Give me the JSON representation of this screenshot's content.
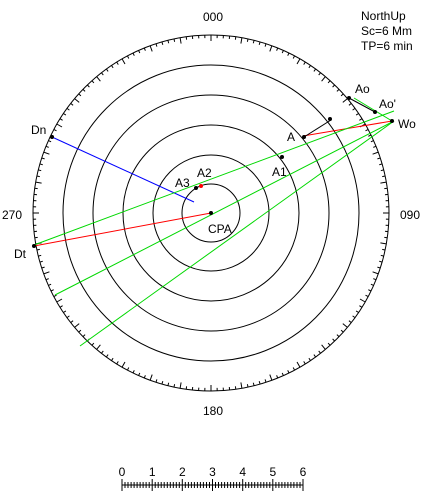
{
  "info": {
    "mode": "NorthUp",
    "scale": "Sc=6 Mm",
    "tp": "TP=6 min"
  },
  "bearing_labels": {
    "north": "000",
    "east": "090",
    "south": "180",
    "west": "270"
  },
  "points": {
    "CPA": "CPA",
    "A": "A",
    "A1": "A1",
    "A2": "A2",
    "A3": "A3",
    "Ao": "Ao",
    "Ao_prime": "Ao'",
    "Wo": "Wo",
    "Dn": "Dn",
    "Dt": "Dt"
  },
  "scale_bar": {
    "labels": [
      "0",
      "1",
      "2",
      "3",
      "4",
      "5",
      "6"
    ]
  },
  "colors": {
    "relative_motion": "#00d800",
    "true_motion": "#ff0000",
    "normal_line": "#0000ff",
    "rings": "#000000"
  }
}
